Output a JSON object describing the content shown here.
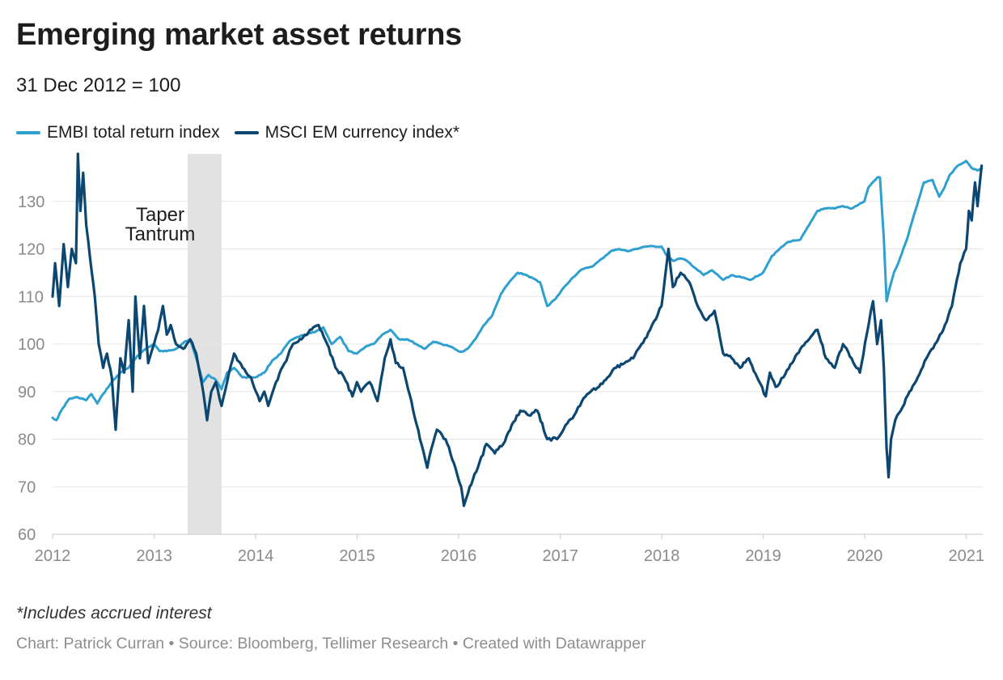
{
  "title": "Emerging market asset returns",
  "subtitle": "31 Dec 2012 = 100",
  "note": "*Includes accrued interest",
  "credits": "Chart: Patrick Curran • Source: Bloomberg, Tellimer Research • Created with Datawrapper",
  "colors": {
    "embi": "#2ea0cf",
    "msci": "#0b4770",
    "band": "#e2e2e2",
    "grid": "#e5e5e5",
    "tick": "#8a8a8a"
  },
  "chart_data": {
    "type": "line",
    "title": "Emerging market asset returns",
    "subtitle": "31 Dec 2012 = 100",
    "xlabel": "",
    "ylabel": "",
    "x_range": [
      "2012-01-01",
      "2021-03-01"
    ],
    "ylim": [
      60,
      140
    ],
    "y_ticks": [
      60,
      70,
      80,
      90,
      100,
      110,
      120,
      130
    ],
    "x_ticks": [
      "2012",
      "2013",
      "2014",
      "2015",
      "2016",
      "2017",
      "2018",
      "2019",
      "2020",
      "2021"
    ],
    "grid": "horizontal",
    "legend_position": "top-left",
    "annotations": [
      {
        "text": "Taper",
        "type": "label"
      },
      {
        "text": "Tantrum",
        "type": "label"
      },
      {
        "type": "shaded-band",
        "from": "2013-05-01",
        "to": "2013-08-31"
      }
    ],
    "series": [
      {
        "name": "EMBI total return index",
        "color": "#2ea0cf",
        "points": [
          [
            "2012-01-01",
            84.5
          ],
          [
            "2012-01-15",
            84.0
          ],
          [
            "2012-02-01",
            86.0
          ],
          [
            "2012-03-01",
            88.5
          ],
          [
            "2012-04-01",
            88.8
          ],
          [
            "2012-05-01",
            88.2
          ],
          [
            "2012-05-20",
            89.5
          ],
          [
            "2012-06-10",
            87.5
          ],
          [
            "2012-07-01",
            89.5
          ],
          [
            "2012-08-01",
            92.0
          ],
          [
            "2012-09-01",
            94.0
          ],
          [
            "2012-10-01",
            95.0
          ],
          [
            "2012-11-01",
            97.5
          ],
          [
            "2012-12-01",
            99.0
          ],
          [
            "2012-12-31",
            100.0
          ],
          [
            "2013-01-20",
            98.5
          ],
          [
            "2013-02-15",
            98.5
          ],
          [
            "2013-03-20",
            99.0
          ],
          [
            "2013-04-20",
            100.5
          ],
          [
            "2013-05-10",
            101.0
          ],
          [
            "2013-06-01",
            97.0
          ],
          [
            "2013-06-25",
            92.0
          ],
          [
            "2013-07-15",
            93.5
          ],
          [
            "2013-08-10",
            92.5
          ],
          [
            "2013-08-31",
            90.5
          ],
          [
            "2013-09-20",
            94.0
          ],
          [
            "2013-10-15",
            95.0
          ],
          [
            "2013-11-15",
            93.0
          ],
          [
            "2013-12-31",
            93.0
          ],
          [
            "2014-02-01",
            94.0
          ],
          [
            "2014-03-01",
            96.5
          ],
          [
            "2014-04-01",
            98.0
          ],
          [
            "2014-05-01",
            100.5
          ],
          [
            "2014-06-01",
            101.5
          ],
          [
            "2014-07-01",
            102.0
          ],
          [
            "2014-08-01",
            102.5
          ],
          [
            "2014-09-01",
            103.5
          ],
          [
            "2014-10-01",
            100.0
          ],
          [
            "2014-11-01",
            101.5
          ],
          [
            "2014-12-01",
            98.5
          ],
          [
            "2014-12-31",
            98.0
          ],
          [
            "2015-02-01",
            99.5
          ],
          [
            "2015-03-01",
            100.0
          ],
          [
            "2015-04-01",
            102.0
          ],
          [
            "2015-05-01",
            103.0
          ],
          [
            "2015-06-01",
            101.0
          ],
          [
            "2015-07-01",
            101.0
          ],
          [
            "2015-08-01",
            100.0
          ],
          [
            "2015-09-01",
            99.0
          ],
          [
            "2015-10-01",
            100.5
          ],
          [
            "2015-11-01",
            100.0
          ],
          [
            "2015-12-01",
            99.5
          ],
          [
            "2015-12-31",
            98.5
          ],
          [
            "2016-01-20",
            98.5
          ],
          [
            "2016-02-10",
            99.5
          ],
          [
            "2016-03-01",
            101.0
          ],
          [
            "2016-04-01",
            104.0
          ],
          [
            "2016-05-01",
            106.0
          ],
          [
            "2016-06-01",
            110.5
          ],
          [
            "2016-07-01",
            113.0
          ],
          [
            "2016-08-01",
            115.0
          ],
          [
            "2016-09-01",
            114.5
          ],
          [
            "2016-10-20",
            113.0
          ],
          [
            "2016-11-15",
            108.0
          ],
          [
            "2016-12-15",
            109.5
          ],
          [
            "2017-01-15",
            112.0
          ],
          [
            "2017-02-15",
            114.0
          ],
          [
            "2017-03-15",
            115.5
          ],
          [
            "2017-05-01",
            116.5
          ],
          [
            "2017-06-01",
            118.0
          ],
          [
            "2017-07-01",
            119.5
          ],
          [
            "2017-08-01",
            120.0
          ],
          [
            "2017-09-01",
            119.5
          ],
          [
            "2017-10-01",
            120.0
          ],
          [
            "2017-11-01",
            120.5
          ],
          [
            "2017-12-31",
            120.5
          ],
          [
            "2018-01-20",
            118.5
          ],
          [
            "2018-02-10",
            117.5
          ],
          [
            "2018-03-10",
            118.0
          ],
          [
            "2018-04-01",
            117.5
          ],
          [
            "2018-05-01",
            116.0
          ],
          [
            "2018-06-01",
            114.5
          ],
          [
            "2018-07-01",
            115.5
          ],
          [
            "2018-08-10",
            113.5
          ],
          [
            "2018-09-10",
            114.5
          ],
          [
            "2018-10-15",
            114.0
          ],
          [
            "2018-11-15",
            113.5
          ],
          [
            "2018-12-31",
            115.0
          ],
          [
            "2019-02-01",
            118.5
          ],
          [
            "2019-03-01",
            120.0
          ],
          [
            "2019-04-01",
            121.5
          ],
          [
            "2019-05-15",
            122.0
          ],
          [
            "2019-06-15",
            125.0
          ],
          [
            "2019-07-15",
            128.0
          ],
          [
            "2019-08-15",
            128.5
          ],
          [
            "2019-09-15",
            128.5
          ],
          [
            "2019-10-15",
            129.0
          ],
          [
            "2019-11-15",
            128.5
          ],
          [
            "2019-12-31",
            130.0
          ],
          [
            "2020-01-15",
            133.0
          ],
          [
            "2020-02-15",
            135.0
          ],
          [
            "2020-02-25",
            135.0
          ],
          [
            "2020-03-10",
            122.0
          ],
          [
            "2020-03-20",
            109.0
          ],
          [
            "2020-04-01",
            112.0
          ],
          [
            "2020-04-15",
            115.0
          ],
          [
            "2020-05-01",
            117.0
          ],
          [
            "2020-06-01",
            122.0
          ],
          [
            "2020-07-01",
            128.0
          ],
          [
            "2020-08-01",
            134.0
          ],
          [
            "2020-09-01",
            134.5
          ],
          [
            "2020-09-25",
            131.0
          ],
          [
            "2020-10-15",
            133.0
          ],
          [
            "2020-11-01",
            135.5
          ],
          [
            "2020-12-01",
            137.5
          ],
          [
            "2020-12-31",
            138.5
          ],
          [
            "2021-01-20",
            137.0
          ],
          [
            "2021-02-10",
            136.5
          ],
          [
            "2021-02-25",
            137.0
          ]
        ]
      },
      {
        "name": "MSCI EM currency index*",
        "color": "#0b4770",
        "points": [
          [
            "2012-01-01",
            110.0
          ],
          [
            "2012-01-10",
            117.0
          ],
          [
            "2012-01-25",
            108.0
          ],
          [
            "2012-02-10",
            121.0
          ],
          [
            "2012-02-25",
            112.0
          ],
          [
            "2012-03-10",
            120.0
          ],
          [
            "2012-03-25",
            117.0
          ],
          [
            "2012-04-01",
            140.0
          ],
          [
            "2012-04-10",
            128.0
          ],
          [
            "2012-04-20",
            136.0
          ],
          [
            "2012-05-01",
            125.0
          ],
          [
            "2012-05-15",
            118.0
          ],
          [
            "2012-06-01",
            110.0
          ],
          [
            "2012-06-15",
            100.0
          ],
          [
            "2012-07-01",
            95.0
          ],
          [
            "2012-07-15",
            98.0
          ],
          [
            "2012-08-01",
            93.0
          ],
          [
            "2012-08-15",
            82.0
          ],
          [
            "2012-09-01",
            97.0
          ],
          [
            "2012-09-15",
            94.0
          ],
          [
            "2012-10-01",
            105.0
          ],
          [
            "2012-10-15",
            90.0
          ],
          [
            "2012-10-25",
            110.0
          ],
          [
            "2012-11-10",
            97.0
          ],
          [
            "2012-11-25",
            108.0
          ],
          [
            "2012-12-10",
            96.0
          ],
          [
            "2012-12-31",
            100.0
          ],
          [
            "2013-01-15",
            103.0
          ],
          [
            "2013-02-01",
            108.0
          ],
          [
            "2013-02-15",
            102.0
          ],
          [
            "2013-03-01",
            104.0
          ],
          [
            "2013-03-20",
            100.0
          ],
          [
            "2013-04-15",
            99.0
          ],
          [
            "2013-05-10",
            101.0
          ],
          [
            "2013-06-01",
            98.0
          ],
          [
            "2013-06-20",
            92.0
          ],
          [
            "2013-07-10",
            84.0
          ],
          [
            "2013-07-25",
            90.0
          ],
          [
            "2013-08-10",
            92.0
          ],
          [
            "2013-08-31",
            87.0
          ],
          [
            "2013-09-20",
            92.0
          ],
          [
            "2013-10-15",
            98.0
          ],
          [
            "2013-11-15",
            95.0
          ],
          [
            "2013-12-15",
            93.0
          ],
          [
            "2014-01-15",
            88.0
          ],
          [
            "2014-02-01",
            90.0
          ],
          [
            "2014-02-15",
            87.0
          ],
          [
            "2014-03-15",
            92.0
          ],
          [
            "2014-04-15",
            96.0
          ],
          [
            "2014-05-15",
            100.0
          ],
          [
            "2014-06-15",
            101.0
          ],
          [
            "2014-07-15",
            103.0
          ],
          [
            "2014-08-15",
            104.0
          ],
          [
            "2014-09-15",
            100.0
          ],
          [
            "2014-10-15",
            95.0
          ],
          [
            "2014-11-15",
            93.0
          ],
          [
            "2014-12-15",
            89.0
          ],
          [
            "2014-12-31",
            92.0
          ],
          [
            "2015-01-15",
            90.0
          ],
          [
            "2015-02-15",
            92.0
          ],
          [
            "2015-03-15",
            88.0
          ],
          [
            "2015-04-10",
            97.0
          ],
          [
            "2015-05-01",
            101.0
          ],
          [
            "2015-05-20",
            96.0
          ],
          [
            "2015-06-15",
            95.0
          ],
          [
            "2015-07-15",
            88.0
          ],
          [
            "2015-08-15",
            80.0
          ],
          [
            "2015-09-10",
            74.0
          ],
          [
            "2015-09-25",
            78.0
          ],
          [
            "2015-10-15",
            82.0
          ],
          [
            "2015-11-15",
            80.0
          ],
          [
            "2015-12-15",
            75.0
          ],
          [
            "2016-01-10",
            70.0
          ],
          [
            "2016-01-20",
            66.0
          ],
          [
            "2016-02-10",
            70.0
          ],
          [
            "2016-03-10",
            74.0
          ],
          [
            "2016-04-10",
            79.0
          ],
          [
            "2016-05-10",
            77.0
          ],
          [
            "2016-06-10",
            79.0
          ],
          [
            "2016-07-10",
            83.0
          ],
          [
            "2016-08-10",
            86.0
          ],
          [
            "2016-09-10",
            85.0
          ],
          [
            "2016-10-10",
            86.0
          ],
          [
            "2016-11-15",
            80.0
          ],
          [
            "2016-12-20",
            80.0
          ],
          [
            "2017-01-20",
            83.0
          ],
          [
            "2017-02-20",
            85.0
          ],
          [
            "2017-03-20",
            88.0
          ],
          [
            "2017-04-20",
            90.0
          ],
          [
            "2017-05-20",
            91.0
          ],
          [
            "2017-06-20",
            93.0
          ],
          [
            "2017-07-20",
            95.0
          ],
          [
            "2017-08-20",
            96.0
          ],
          [
            "2017-09-20",
            97.0
          ],
          [
            "2017-10-20",
            100.0
          ],
          [
            "2017-11-20",
            103.0
          ],
          [
            "2017-12-31",
            108.0
          ],
          [
            "2018-01-25",
            120.0
          ],
          [
            "2018-02-10",
            112.0
          ],
          [
            "2018-03-10",
            115.0
          ],
          [
            "2018-04-10",
            113.0
          ],
          [
            "2018-05-10",
            108.0
          ],
          [
            "2018-06-10",
            105.0
          ],
          [
            "2018-07-10",
            107.0
          ],
          [
            "2018-08-10",
            98.0
          ],
          [
            "2018-09-10",
            97.0
          ],
          [
            "2018-10-10",
            95.0
          ],
          [
            "2018-11-10",
            97.0
          ],
          [
            "2018-12-10",
            93.0
          ],
          [
            "2019-01-10",
            89.0
          ],
          [
            "2019-01-25",
            94.0
          ],
          [
            "2019-02-15",
            91.0
          ],
          [
            "2019-03-15",
            93.0
          ],
          [
            "2019-04-15",
            96.0
          ],
          [
            "2019-05-15",
            99.0
          ],
          [
            "2019-06-15",
            101.0
          ],
          [
            "2019-07-15",
            103.0
          ],
          [
            "2019-08-15",
            97.0
          ],
          [
            "2019-09-15",
            95.0
          ],
          [
            "2019-10-15",
            100.0
          ],
          [
            "2019-11-15",
            97.0
          ],
          [
            "2019-12-15",
            94.0
          ],
          [
            "2020-01-15",
            104.0
          ],
          [
            "2020-01-31",
            109.0
          ],
          [
            "2020-02-15",
            100.0
          ],
          [
            "2020-02-29",
            105.0
          ],
          [
            "2020-03-10",
            95.0
          ],
          [
            "2020-03-20",
            78.0
          ],
          [
            "2020-03-27",
            72.0
          ],
          [
            "2020-04-05",
            80.0
          ],
          [
            "2020-04-20",
            84.0
          ],
          [
            "2020-05-10",
            86.0
          ],
          [
            "2020-06-10",
            90.0
          ],
          [
            "2020-07-10",
            93.0
          ],
          [
            "2020-08-10",
            97.0
          ],
          [
            "2020-09-10",
            100.0
          ],
          [
            "2020-10-10",
            103.0
          ],
          [
            "2020-11-10",
            108.0
          ],
          [
            "2020-12-10",
            117.0
          ],
          [
            "2020-12-31",
            120.0
          ],
          [
            "2021-01-10",
            128.0
          ],
          [
            "2021-01-20",
            126.0
          ],
          [
            "2021-02-01",
            134.0
          ],
          [
            "2021-02-10",
            129.0
          ],
          [
            "2021-02-25",
            137.5
          ]
        ]
      }
    ]
  }
}
